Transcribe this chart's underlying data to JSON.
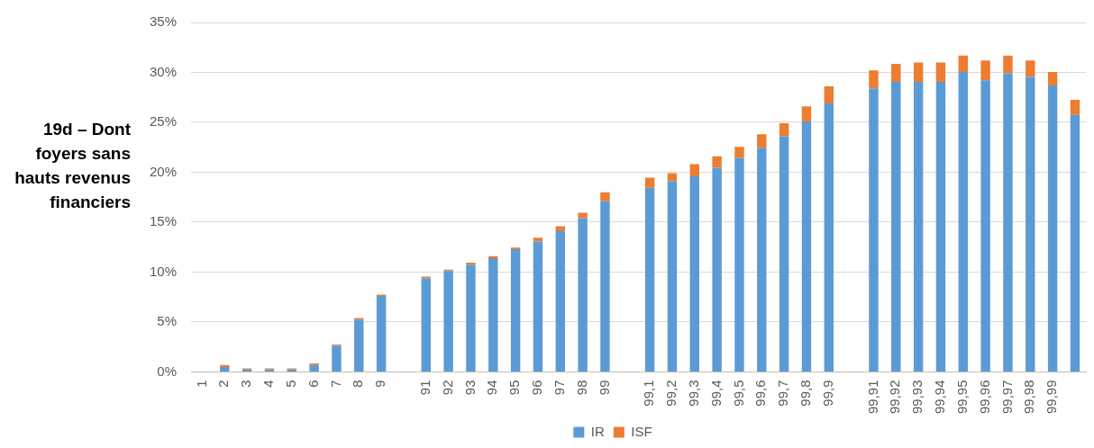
{
  "chart_data": {
    "type": "bar",
    "stacked": true,
    "ylabel": "19d – Dont foyers sans hauts revenus financiers",
    "categories": [
      "1",
      "2",
      "3",
      "4",
      "5",
      "6",
      "7",
      "8",
      "9",
      null,
      "91",
      "92",
      "93",
      "94",
      "95",
      "96",
      "97",
      "98",
      "99",
      null,
      "99,1",
      "99,2",
      "99,3",
      "99,4",
      "99,5",
      "99,6",
      "99,7",
      "99,8",
      "99,9",
      null,
      "99,91",
      "99,92",
      "99,93",
      "99,94",
      "99,95",
      "99,96",
      "99,97",
      "99,98",
      "99,99",
      null
    ],
    "series": [
      {
        "name": "IR",
        "color": "#5b9bd5",
        "values": [
          0,
          0.5,
          0.25,
          0.25,
          0.25,
          0.7,
          2.6,
          5.25,
          7.6,
          null,
          9.4,
          10.1,
          10.75,
          11.4,
          12.3,
          13.05,
          14.1,
          15.4,
          17.1,
          null,
          18.45,
          19.1,
          19.6,
          20.45,
          21.45,
          22.45,
          23.6,
          25.1,
          26.9,
          null,
          28.4,
          29.05,
          29.05,
          29.05,
          30.05,
          29.2,
          29.9,
          29.55,
          28.7,
          25.75
        ]
      },
      {
        "name": "ISF",
        "color": "#ed7d31",
        "values": [
          0,
          0.2,
          0.1,
          0.1,
          0.1,
          0.15,
          0.15,
          0.15,
          0.15,
          null,
          0.15,
          0.15,
          0.2,
          0.2,
          0.15,
          0.4,
          0.5,
          0.55,
          0.9,
          null,
          1.0,
          0.8,
          1.2,
          1.15,
          1.1,
          1.35,
          1.3,
          1.5,
          1.7,
          null,
          1.8,
          1.8,
          1.95,
          1.95,
          1.65,
          2.0,
          1.8,
          1.65,
          1.35,
          1.5
        ]
      }
    ],
    "ylim": [
      0,
      35
    ],
    "yticks": [
      {
        "value": 0,
        "label": "0%"
      },
      {
        "value": 5,
        "label": "5%"
      },
      {
        "value": 10,
        "label": "10%"
      },
      {
        "value": 15,
        "label": "15%"
      },
      {
        "value": 20,
        "label": "20%"
      },
      {
        "value": 25,
        "label": "25%"
      },
      {
        "value": 30,
        "label": "30%"
      },
      {
        "value": 35,
        "label": "35%"
      }
    ],
    "grid": "y",
    "legend": "bottom"
  }
}
